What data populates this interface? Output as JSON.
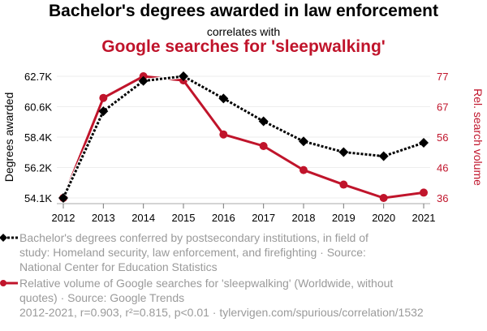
{
  "chart_data": {
    "type": "line",
    "title": "Bachelor's degrees awarded in law enforcement",
    "subtitle_connector": "correlates with",
    "title2": "Google searches for 'sleepwalking'",
    "x": [
      2012,
      2013,
      2014,
      2015,
      2016,
      2017,
      2018,
      2019,
      2020,
      2021
    ],
    "x_tick_labels": [
      "2012",
      "2013",
      "2014",
      "2015",
      "2016",
      "2017",
      "2018",
      "2019",
      "2020",
      "2021"
    ],
    "ylabel_left": "Degrees awarded",
    "ylabel_right": "Rel. search volume",
    "ylim_left": [
      54100,
      62700
    ],
    "ylim_right": [
      36,
      77
    ],
    "y_ticks_left": [
      {
        "v": 54100,
        "label": "54.1K"
      },
      {
        "v": 56250,
        "label": "56.2K"
      },
      {
        "v": 58400,
        "label": "58.4K"
      },
      {
        "v": 60550,
        "label": "60.6K"
      },
      {
        "v": 62700,
        "label": "62.7K"
      }
    ],
    "y_ticks_right": [
      {
        "v": 36,
        "label": "36"
      },
      {
        "v": 46.25,
        "label": "46"
      },
      {
        "v": 56.5,
        "label": "56"
      },
      {
        "v": 66.75,
        "label": "67"
      },
      {
        "v": 77,
        "label": "77"
      }
    ],
    "grid": true,
    "series": [
      {
        "name": "Bachelor's degrees conferred by postsecondary institutions, in field of study: Homeland security, law enforcement, and firefighting · Source: National Center for Education Statistics",
        "axis": "left",
        "color": "#000000",
        "marker": "diamond",
        "dash": true,
        "values": [
          54100,
          60230,
          62370,
          62700,
          61130,
          59520,
          58100,
          57340,
          57050,
          58000
        ]
      },
      {
        "name": "Relative volume of Google searches for 'sleepwalking' (Worldwide, without quotes) · Source: Google Trends",
        "axis": "right",
        "color": "#c0142b",
        "marker": "circle",
        "dash": false,
        "values": [
          36,
          69.7,
          77,
          75.6,
          57.4,
          53.5,
          45.4,
          40.5,
          36,
          37.8
        ]
      }
    ],
    "footer": "2012-2021, r=0.903, r²=0.815, p<0.01 · tylervigen.com/spurious/correlation/1532"
  }
}
